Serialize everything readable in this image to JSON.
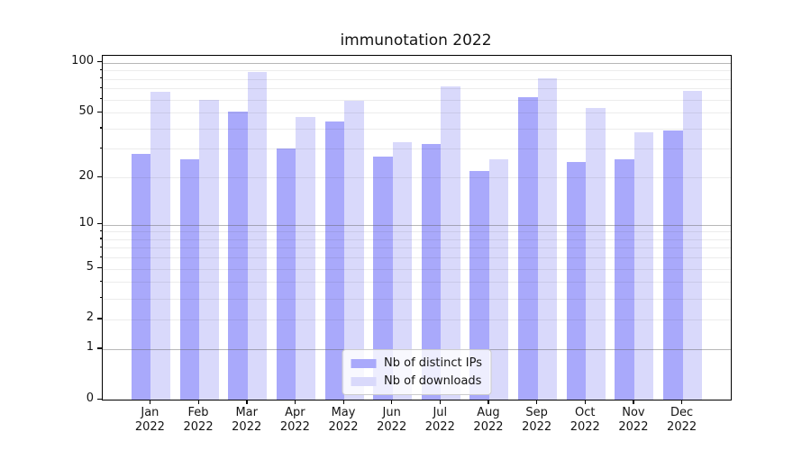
{
  "chart_data": {
    "type": "bar",
    "title": "immunotation 2022",
    "categories": [
      "Jan",
      "Feb",
      "Mar",
      "Apr",
      "May",
      "Jun",
      "Jul",
      "Aug",
      "Sep",
      "Oct",
      "Nov",
      "Dec"
    ],
    "category_year": "2022",
    "series": [
      {
        "name": "Nb of distinct IPs",
        "color": "#a9a9fb",
        "values": [
          28,
          26,
          51,
          30,
          44,
          27,
          32,
          22,
          62,
          25,
          26,
          39
        ]
      },
      {
        "name": "Nb of downloads",
        "color": "#d9d9fb",
        "values": [
          67,
          60,
          88,
          47,
          59,
          33,
          72,
          26,
          81,
          53,
          38,
          68
        ]
      }
    ],
    "yscale": "log1p",
    "ylim": [
      0,
      110
    ],
    "yticks": [
      0,
      1,
      2,
      5,
      10,
      20,
      50,
      100
    ],
    "grid": {
      "on": true,
      "major": [
        1,
        10,
        100
      ],
      "minor": [
        2,
        3,
        4,
        5,
        6,
        7,
        8,
        9,
        20,
        30,
        40,
        50,
        60,
        70,
        80,
        90
      ]
    },
    "legend_position": "lower-center",
    "colors": {
      "spine": "#000000",
      "grid_major": "#b0b0b0",
      "grid_minor": "#ebebeb",
      "legend_border": "#cccccc"
    }
  }
}
